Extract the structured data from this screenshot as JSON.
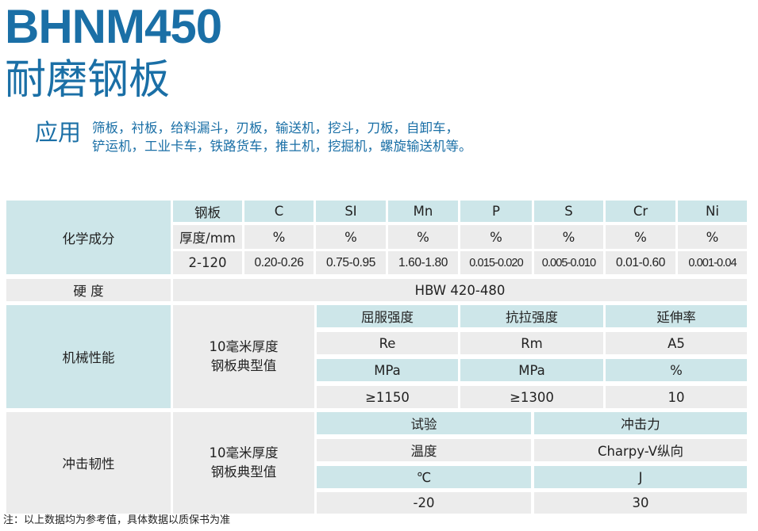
{
  "header": {
    "title": "BHNM450",
    "subtitle": "耐磨钢板",
    "app_label": "应用",
    "app_line1": "筛板，衬板，给料漏斗，刃板，输送机，挖斗，刀板，自卸车，",
    "app_line2": "铲运机，工业卡车，铁路货车，推土机，挖掘机，螺旋输送机等。"
  },
  "chemical": {
    "label": "化学成分",
    "headers": [
      "钢板",
      "C",
      "SI",
      "Mn",
      "P",
      "S",
      "Cr",
      "Ni"
    ],
    "units": [
      "厚度/mm",
      "%",
      "%",
      "%",
      "%",
      "%",
      "%",
      "%"
    ],
    "values": [
      "2-120",
      "0.20-0.26",
      "0.75-0.95",
      "1.60-1.80",
      "0.015-0.020",
      "0.005-0.010",
      "0.01-0.60",
      "0.001-0.04"
    ]
  },
  "hardness": {
    "label": "硬 度",
    "value": "HBW 420-480"
  },
  "mechanical": {
    "label": "机械性能",
    "sub_label_1": "10毫米厚度",
    "sub_label_2": "钢板典型值",
    "headers": [
      "屈服强度",
      "抗拉强度",
      "延伸率"
    ],
    "symbols": [
      "Re",
      "Rm",
      "A5"
    ],
    "units": [
      "MPa",
      "MPa",
      "%"
    ],
    "values": [
      "≥1150",
      "≥1300",
      "10"
    ]
  },
  "impact": {
    "label": "冲击韧性",
    "sub_label_1": "10毫米厚度",
    "sub_label_2": "钢板典型值",
    "headers": [
      "试验",
      "冲击力"
    ],
    "names": [
      "温度",
      "Charpy-V纵向"
    ],
    "units": [
      "℃",
      "J"
    ],
    "values": [
      "-20",
      "30"
    ]
  },
  "footnote": "注：以上数据均为参考值，具体数据以质保书为准"
}
